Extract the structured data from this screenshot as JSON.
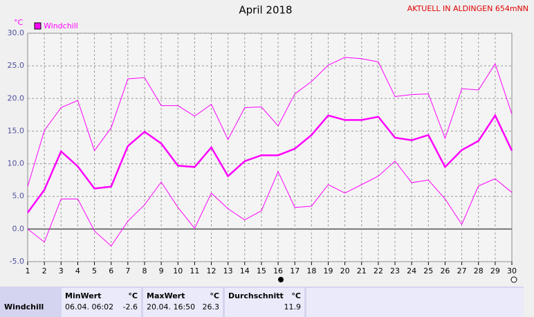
{
  "chart_data": {
    "type": "line",
    "title": "April 2018",
    "subtitle": "AKTUELL IN ALDINGEN 654mNN",
    "y_label": "°C",
    "categories": [
      "1",
      "2",
      "3",
      "4",
      "5",
      "6",
      "7",
      "8",
      "9",
      "10",
      "11",
      "12",
      "13",
      "14",
      "15",
      "16",
      "17",
      "18",
      "19",
      "20",
      "21",
      "22",
      "23",
      "24",
      "25",
      "26",
      "27",
      "28",
      "29",
      "30"
    ],
    "series": [
      {
        "color": "#ff00ff",
        "width": 1,
        "values": [
          6.5,
          15.1,
          18.6,
          19.7,
          12.0,
          15.5,
          23.0,
          23.2,
          18.9,
          18.9,
          17.3,
          19.1,
          13.7,
          18.6,
          18.7,
          15.8,
          20.7,
          22.6,
          25.1,
          26.3,
          26.1,
          25.6,
          20.3,
          20.6,
          20.7,
          13.9,
          21.5,
          21.3,
          25.3,
          17.6
        ]
      },
      {
        "name": "Windchill",
        "color": "#ff00ff",
        "width": 2.5,
        "values": [
          2.5,
          6.0,
          11.9,
          9.6,
          6.2,
          6.5,
          12.7,
          14.9,
          13.1,
          9.7,
          9.5,
          12.5,
          8.1,
          10.4,
          11.3,
          11.3,
          12.3,
          14.4,
          17.4,
          16.7,
          16.7,
          17.2,
          14.0,
          13.6,
          14.4,
          9.5,
          12.1,
          13.5,
          17.4,
          12.0
        ]
      },
      {
        "color": "#ff00ff",
        "width": 1,
        "values": [
          0.0,
          -2.0,
          4.6,
          4.6,
          -0.3,
          -2.6,
          1.2,
          3.7,
          7.2,
          3.3,
          0.1,
          5.5,
          3.1,
          1.4,
          2.8,
          8.8,
          3.3,
          3.5,
          6.8,
          5.5,
          6.8,
          8.1,
          10.4,
          7.1,
          7.5,
          4.6,
          0.7,
          6.6,
          7.7,
          5.6
        ]
      }
    ],
    "ylim": [
      -5,
      30
    ],
    "yticks": [
      {
        "value": -5,
        "label": "-5.0"
      },
      {
        "value": 0,
        "label": "0.0"
      },
      {
        "value": 5,
        "label": "5.0"
      },
      {
        "value": 10,
        "label": "10.0"
      },
      {
        "value": 15,
        "label": "15.0"
      },
      {
        "value": 20,
        "label": "20.0"
      },
      {
        "value": 25,
        "label": "25.0"
      },
      {
        "value": 30,
        "label": "30.0"
      }
    ],
    "grid": true
  },
  "summary": {
    "headers": [
      "MinWert",
      "°C",
      "MaxWert",
      "°C",
      "Durchschnitt",
      "°C"
    ],
    "row": {
      "label": "Windchill",
      "min_time": "06.04.  06:02",
      "min": -2.6,
      "max_time": "20.04.  16:50",
      "max": 26.3,
      "avg": 11.9
    }
  }
}
